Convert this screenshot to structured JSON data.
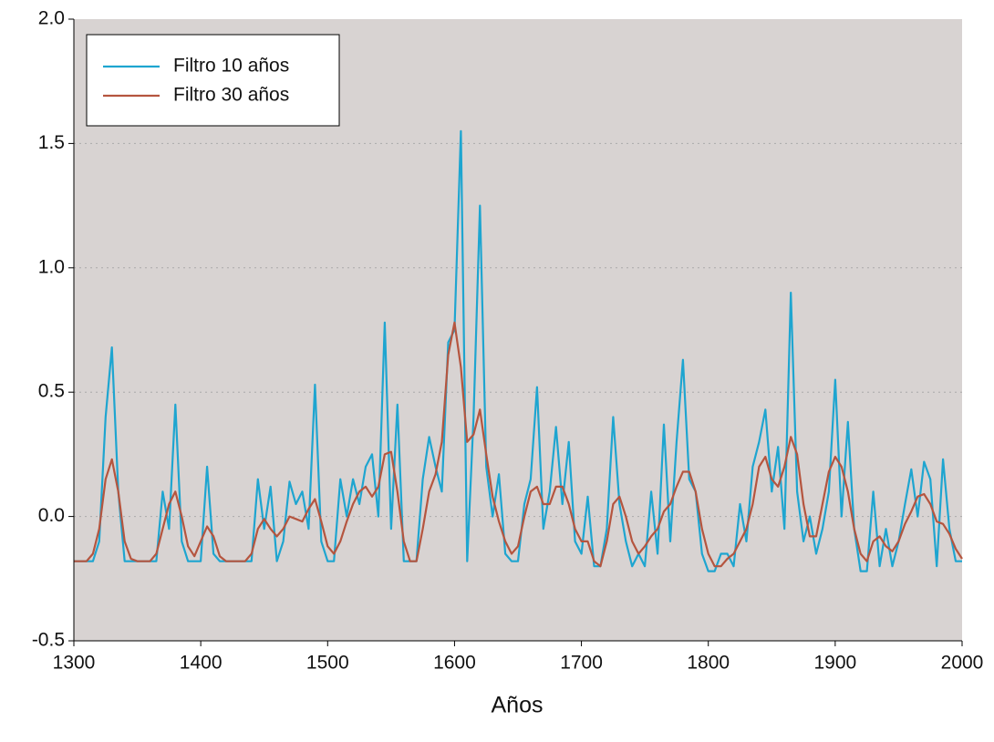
{
  "chart_data": {
    "type": "line",
    "x_label": "Años",
    "x": [
      1300,
      1305,
      1310,
      1315,
      1320,
      1325,
      1330,
      1335,
      1340,
      1345,
      1350,
      1355,
      1360,
      1365,
      1370,
      1375,
      1380,
      1385,
      1390,
      1395,
      1400,
      1405,
      1410,
      1415,
      1420,
      1425,
      1430,
      1435,
      1440,
      1445,
      1450,
      1455,
      1460,
      1465,
      1470,
      1475,
      1480,
      1485,
      1490,
      1495,
      1500,
      1505,
      1510,
      1515,
      1520,
      1525,
      1530,
      1535,
      1540,
      1545,
      1550,
      1555,
      1560,
      1565,
      1570,
      1575,
      1580,
      1585,
      1590,
      1595,
      1600,
      1605,
      1610,
      1615,
      1620,
      1625,
      1630,
      1635,
      1640,
      1645,
      1650,
      1655,
      1660,
      1665,
      1670,
      1675,
      1680,
      1685,
      1690,
      1695,
      1700,
      1705,
      1710,
      1715,
      1720,
      1725,
      1730,
      1735,
      1740,
      1745,
      1750,
      1755,
      1760,
      1765,
      1770,
      1775,
      1780,
      1785,
      1790,
      1795,
      1800,
      1805,
      1810,
      1815,
      1820,
      1825,
      1830,
      1835,
      1840,
      1845,
      1850,
      1855,
      1860,
      1865,
      1870,
      1875,
      1880,
      1885,
      1890,
      1895,
      1900,
      1905,
      1910,
      1915,
      1920,
      1925,
      1930,
      1935,
      1940,
      1945,
      1950,
      1955,
      1960,
      1965,
      1970,
      1975,
      1980,
      1985,
      1990,
      1995,
      2000
    ],
    "series": [
      {
        "name": "Filtro 10 años",
        "color": "#1ea5d0",
        "values": [
          -0.18,
          -0.18,
          -0.18,
          -0.18,
          -0.1,
          0.4,
          0.68,
          0.1,
          -0.18,
          -0.18,
          -0.18,
          -0.18,
          -0.18,
          -0.18,
          0.1,
          -0.05,
          0.45,
          -0.1,
          -0.18,
          -0.18,
          -0.18,
          0.2,
          -0.15,
          -0.18,
          -0.18,
          -0.18,
          -0.18,
          -0.18,
          -0.18,
          0.15,
          -0.05,
          0.12,
          -0.18,
          -0.1,
          0.14,
          0.05,
          0.1,
          -0.05,
          0.53,
          -0.1,
          -0.18,
          -0.18,
          0.15,
          0.0,
          0.15,
          0.05,
          0.2,
          0.25,
          0.0,
          0.78,
          -0.05,
          0.45,
          -0.18,
          -0.18,
          -0.18,
          0.15,
          0.32,
          0.2,
          0.1,
          0.7,
          0.75,
          1.55,
          -0.18,
          0.4,
          1.25,
          0.2,
          0.0,
          0.17,
          -0.15,
          -0.18,
          -0.18,
          0.05,
          0.15,
          0.52,
          -0.05,
          0.1,
          0.36,
          0.05,
          0.3,
          -0.1,
          -0.15,
          0.08,
          -0.2,
          -0.2,
          -0.05,
          0.4,
          0.05,
          -0.1,
          -0.2,
          -0.15,
          -0.2,
          0.1,
          -0.15,
          0.37,
          -0.1,
          0.3,
          0.63,
          0.15,
          0.1,
          -0.15,
          -0.22,
          -0.22,
          -0.15,
          -0.15,
          -0.2,
          0.05,
          -0.1,
          0.2,
          0.3,
          0.43,
          0.1,
          0.28,
          -0.05,
          0.9,
          0.1,
          -0.1,
          0.0,
          -0.15,
          -0.05,
          0.1,
          0.55,
          0.0,
          0.38,
          -0.05,
          -0.22,
          -0.22,
          0.1,
          -0.2,
          -0.05,
          -0.2,
          -0.1,
          0.05,
          0.19,
          0.0,
          0.22,
          0.15,
          -0.2,
          0.23,
          -0.05,
          -0.18,
          -0.18
        ]
      },
      {
        "name": "Filtro 30 años",
        "color": "#b5553f",
        "values": [
          -0.18,
          -0.18,
          -0.18,
          -0.15,
          -0.05,
          0.15,
          0.23,
          0.1,
          -0.1,
          -0.17,
          -0.18,
          -0.18,
          -0.18,
          -0.15,
          -0.05,
          0.05,
          0.1,
          0.0,
          -0.12,
          -0.16,
          -0.1,
          -0.04,
          -0.08,
          -0.16,
          -0.18,
          -0.18,
          -0.18,
          -0.18,
          -0.15,
          -0.05,
          -0.01,
          -0.05,
          -0.08,
          -0.05,
          0.0,
          -0.01,
          -0.02,
          0.03,
          0.07,
          -0.02,
          -0.12,
          -0.15,
          -0.1,
          -0.02,
          0.05,
          0.1,
          0.12,
          0.08,
          0.12,
          0.25,
          0.26,
          0.1,
          -0.1,
          -0.18,
          -0.18,
          -0.05,
          0.1,
          0.17,
          0.3,
          0.65,
          0.78,
          0.6,
          0.3,
          0.33,
          0.43,
          0.25,
          0.08,
          -0.02,
          -0.1,
          -0.15,
          -0.12,
          0.0,
          0.1,
          0.12,
          0.05,
          0.05,
          0.12,
          0.12,
          0.05,
          -0.05,
          -0.1,
          -0.1,
          -0.18,
          -0.2,
          -0.1,
          0.05,
          0.08,
          0.0,
          -0.1,
          -0.15,
          -0.12,
          -0.08,
          -0.05,
          0.02,
          0.05,
          0.12,
          0.18,
          0.18,
          0.1,
          -0.05,
          -0.15,
          -0.2,
          -0.2,
          -0.17,
          -0.15,
          -0.1,
          -0.05,
          0.05,
          0.2,
          0.24,
          0.15,
          0.12,
          0.2,
          0.32,
          0.25,
          0.05,
          -0.08,
          -0.08,
          0.05,
          0.18,
          0.24,
          0.2,
          0.1,
          -0.05,
          -0.15,
          -0.18,
          -0.1,
          -0.08,
          -0.12,
          -0.14,
          -0.1,
          -0.03,
          0.02,
          0.08,
          0.09,
          0.05,
          -0.02,
          -0.03,
          -0.07,
          -0.13,
          -0.17
        ]
      }
    ],
    "xlim": [
      1300,
      2000
    ],
    "xticks": [
      1300,
      1400,
      1500,
      1600,
      1700,
      1800,
      1900,
      2000
    ],
    "ylim": [
      -0.5,
      2.0
    ],
    "yticks": [
      {
        "value": -0.5,
        "label": "-0.5"
      },
      {
        "value": 0,
        "label": "0.0"
      },
      {
        "value": 0.5,
        "label": "0.5"
      },
      {
        "value": 1,
        "label": "1.0"
      },
      {
        "value": 1.5,
        "label": "1.5"
      },
      {
        "value": 2,
        "label": "2.0"
      }
    ],
    "grid": true,
    "legend": "upper left",
    "background": "#d8d3d2"
  }
}
